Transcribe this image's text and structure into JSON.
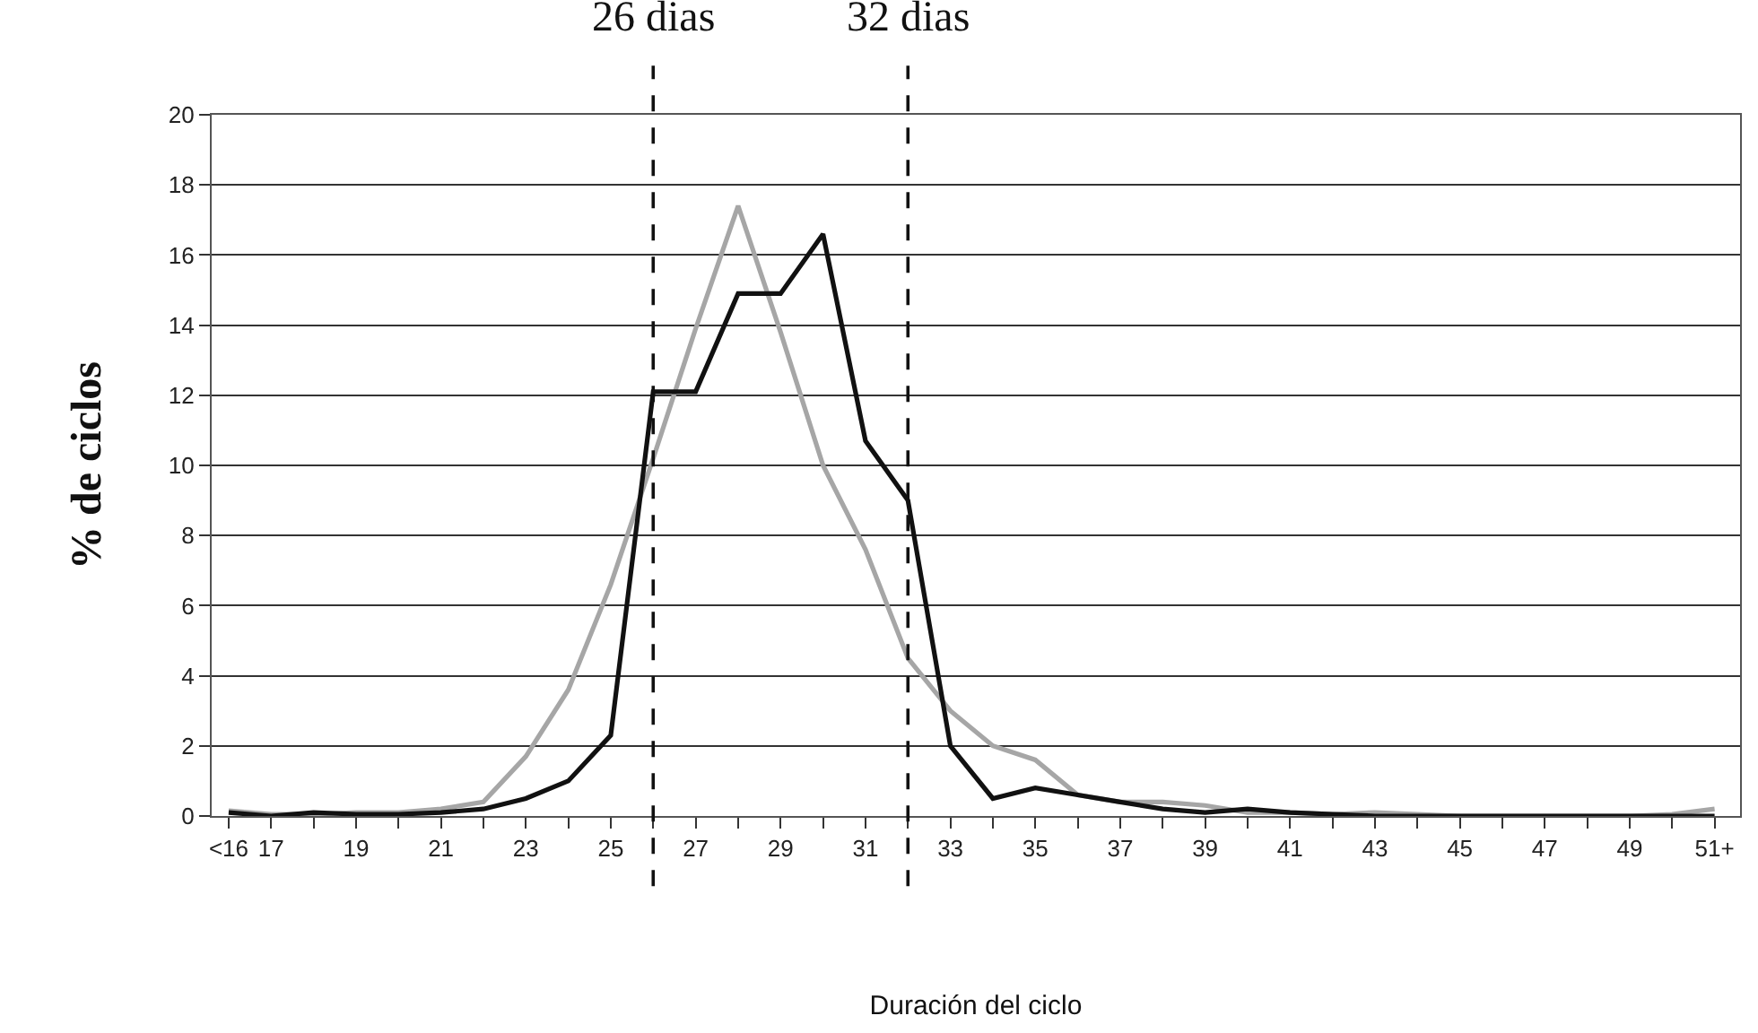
{
  "chart_data": {
    "type": "line",
    "xlabel": "Duración del ciclo",
    "ylabel": "% de ciclos",
    "x": [
      16,
      17,
      18,
      19,
      20,
      21,
      22,
      23,
      24,
      25,
      26,
      27,
      28,
      29,
      30,
      31,
      32,
      33,
      34,
      35,
      36,
      37,
      38,
      39,
      40,
      41,
      42,
      43,
      44,
      45,
      46,
      47,
      48,
      49,
      50,
      51
    ],
    "series": [
      {
        "color": "#a6a6a6",
        "values": [
          0.15,
          0.05,
          0.05,
          0.1,
          0.1,
          0.2,
          0.4,
          1.7,
          3.6,
          6.6,
          10.2,
          13.9,
          17.4,
          13.8,
          10.0,
          7.6,
          4.5,
          3.0,
          2.0,
          1.6,
          0.6,
          0.4,
          0.4,
          0.3,
          0.1,
          0.1,
          0.05,
          0.1,
          0.05,
          0,
          0,
          0,
          0,
          0,
          0.05,
          0.2
        ]
      },
      {
        "color": "#111111",
        "values": [
          0.1,
          0,
          0.1,
          0.05,
          0.05,
          0.1,
          0.2,
          0.5,
          1.0,
          2.3,
          12.1,
          12.1,
          14.9,
          14.9,
          16.6,
          10.7,
          9.0,
          2.0,
          0.5,
          0.8,
          0.6,
          0.4,
          0.2,
          0.1,
          0.2,
          0.1,
          0.05,
          0,
          0,
          0,
          0,
          0,
          0,
          0,
          0,
          0
        ]
      }
    ],
    "xlim": [
      15.6,
      51.6
    ],
    "xticks": [
      {
        "value": 16,
        "label": "<16"
      },
      17,
      {
        "value": 18,
        "label": null
      },
      19,
      {
        "value": 20,
        "label": null
      },
      21,
      {
        "value": 22,
        "label": null
      },
      23,
      {
        "value": 24,
        "label": null
      },
      25,
      {
        "value": 26,
        "label": null
      },
      27,
      {
        "value": 28,
        "label": null
      },
      29,
      {
        "value": 30,
        "label": null
      },
      31,
      {
        "value": 32,
        "label": null
      },
      33,
      {
        "value": 34,
        "label": null
      },
      35,
      {
        "value": 36,
        "label": null
      },
      37,
      {
        "value": 38,
        "label": null
      },
      39,
      {
        "value": 40,
        "label": null
      },
      41,
      {
        "value": 42,
        "label": null
      },
      43,
      {
        "value": 44,
        "label": null
      },
      45,
      {
        "value": 46,
        "label": null
      },
      47,
      {
        "value": 48,
        "label": null
      },
      49,
      {
        "value": 50,
        "label": null
      },
      {
        "value": 51,
        "label": "51+"
      }
    ],
    "ylim": [
      0,
      20
    ],
    "yticks": [
      0,
      2,
      4,
      6,
      8,
      10,
      12,
      14,
      16,
      18,
      20
    ],
    "grid": "y",
    "legend": false,
    "marker": "none",
    "line_style": "solid",
    "ref_lines": [
      {
        "axis": "x",
        "value": 26,
        "label": "26 dias",
        "color": "#111111",
        "line_style": "dashed"
      },
      {
        "axis": "x",
        "value": 32,
        "label": "32 dias",
        "color": "#111111",
        "line_style": "dashed"
      }
    ]
  }
}
